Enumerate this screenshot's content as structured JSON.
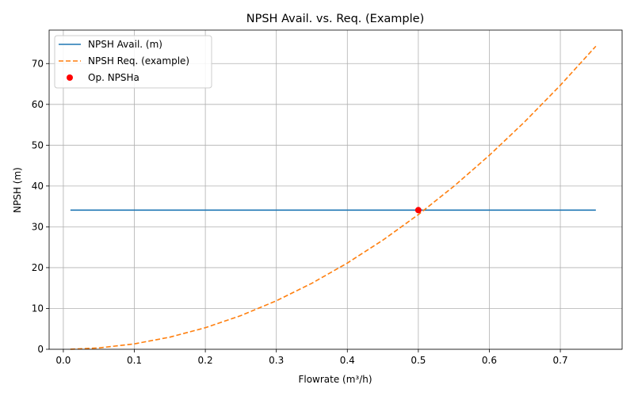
{
  "chart_data": {
    "type": "line",
    "title": "NPSH Avail. vs. Req. (Example)",
    "xlabel": "Flowrate (m³/h)",
    "ylabel": "NPSH (m)",
    "xlim": [
      -0.02,
      0.787
    ],
    "ylim": [
      0,
      78.2
    ],
    "xticks": [
      0.0,
      0.1,
      0.2,
      0.3,
      0.4,
      0.5,
      0.6,
      0.7
    ],
    "xtick_labels": [
      "0.0",
      "0.1",
      "0.2",
      "0.3",
      "0.4",
      "0.5",
      "0.6",
      "0.7"
    ],
    "yticks": [
      0,
      10,
      20,
      30,
      40,
      50,
      60,
      70
    ],
    "ytick_labels": [
      "0",
      "10",
      "20",
      "30",
      "40",
      "50",
      "60",
      "70"
    ],
    "grid": true,
    "legend_position": "top-left",
    "series": [
      {
        "name": "NPSH Avail. (m)",
        "style": "solid",
        "color": "#1f77b4",
        "x": [
          0.01,
          0.75
        ],
        "y": [
          34.1,
          34.1
        ]
      },
      {
        "name": "NPSH Req. (example)",
        "style": "dashed",
        "color": "#ff7f0e",
        "x": [
          0.01,
          0.05,
          0.1,
          0.15,
          0.2,
          0.25,
          0.3,
          0.35,
          0.4,
          0.45,
          0.5,
          0.55,
          0.6,
          0.65,
          0.7,
          0.75
        ],
        "y": [
          0.01,
          0.33,
          1.32,
          2.97,
          5.28,
          8.25,
          11.88,
          16.17,
          21.12,
          26.73,
          33.0,
          39.93,
          47.52,
          55.77,
          64.68,
          74.25
        ]
      },
      {
        "name": "Op. NPSHa",
        "style": "marker",
        "color": "#ff0000",
        "x": [
          0.5
        ],
        "y": [
          34.1
        ]
      }
    ]
  }
}
